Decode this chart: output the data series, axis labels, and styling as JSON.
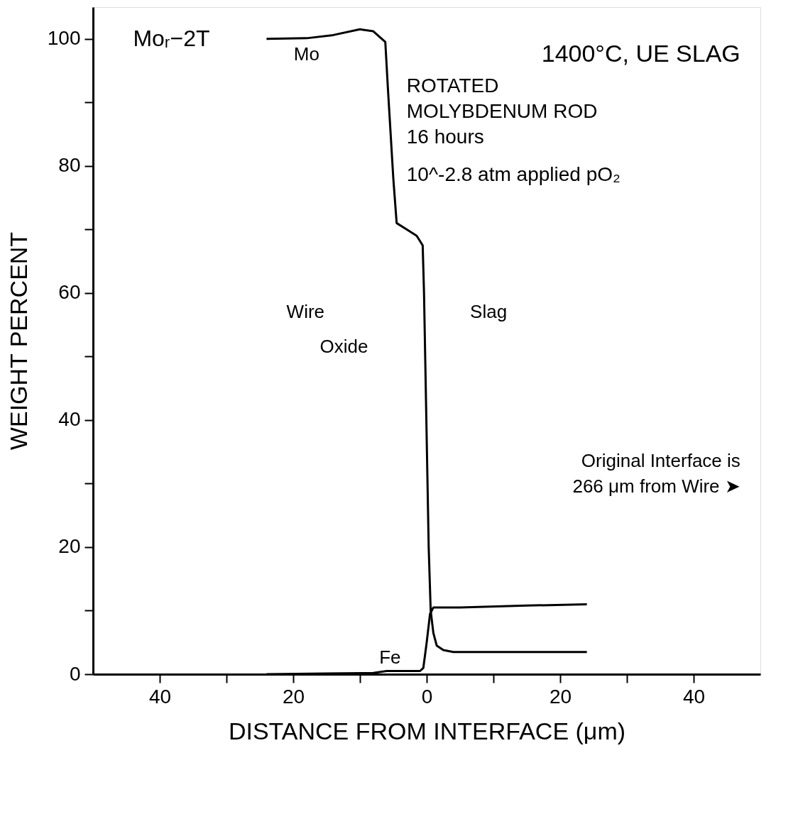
{
  "chart_data": {
    "type": "line",
    "xlabel": "DISTANCE FROM INTERFACE (μm)",
    "ylabel": "WEIGHT PERCENT",
    "series": [
      {
        "name": "Mo",
        "color": "#000000",
        "x": [
          -24,
          -18,
          -14,
          -10,
          -8,
          -6.2,
          -5.8,
          -5,
          -4.5,
          -3,
          -1.5,
          -0.6,
          -0.4,
          0.3,
          0.6,
          1,
          1.5,
          2.5,
          4,
          10,
          24
        ],
        "values": [
          100,
          100.1,
          100.6,
          101.5,
          101.2,
          99.5,
          92,
          78,
          71,
          70,
          69,
          67.5,
          60,
          20,
          10,
          6.5,
          4.5,
          3.8,
          3.5,
          3.5,
          3.5
        ]
      },
      {
        "name": "Fe",
        "color": "#000000",
        "x": [
          -24,
          -15,
          -8,
          -6,
          -3,
          -1,
          -0.5,
          0,
          0.5,
          1,
          5,
          15,
          24
        ],
        "values": [
          0,
          0.1,
          0.2,
          0.5,
          0.5,
          0.5,
          1,
          5,
          9.5,
          10.5,
          10.5,
          10.8,
          11
        ]
      }
    ],
    "xlim": [
      -50,
      50
    ],
    "ylim": [
      0,
      105
    ],
    "xticks": [
      {
        "value": -40,
        "label": "40"
      },
      {
        "value": -30,
        "label": null
      },
      {
        "value": -20,
        "label": "20"
      },
      {
        "value": -10,
        "label": null
      },
      0,
      {
        "value": 10,
        "label": null
      },
      {
        "value": 20,
        "label": "20"
      },
      {
        "value": 30,
        "label": null
      },
      {
        "value": 40,
        "label": "40"
      }
    ],
    "yticks": [
      0,
      {
        "value": 10,
        "label": null
      },
      20,
      {
        "value": 30,
        "label": null
      },
      40,
      {
        "value": 50,
        "label": null
      },
      60,
      {
        "value": 70,
        "label": null
      },
      80,
      {
        "value": 90,
        "label": null
      },
      100
    ],
    "annotations": [
      "Moᵣ−2T",
      "1400°C, UE SLAG",
      "ROTATED",
      "MOLYBDENUM ROD",
      "16 hours",
      "10^-2.8 atm applied pO₂",
      "Original Interface is",
      "266 μm from Wire ➤",
      "Wire",
      "Slag",
      "Oxide"
    ],
    "grid": false,
    "legend": false,
    "marker": "none",
    "line_style": "solid"
  }
}
